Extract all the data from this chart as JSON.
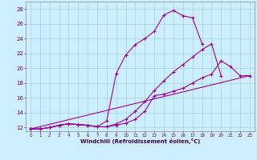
{
  "xlabel": "Windchill (Refroidissement éolien,°C)",
  "background_color": "#cceeff",
  "grid_color": "#99cccc",
  "line_color": "#990099",
  "xlim": [
    -0.5,
    23.5
  ],
  "ylim": [
    11.5,
    29.0
  ],
  "yticks": [
    12,
    14,
    16,
    18,
    20,
    22,
    24,
    26,
    28
  ],
  "xticks": [
    0,
    1,
    2,
    3,
    4,
    5,
    6,
    7,
    8,
    9,
    10,
    11,
    12,
    13,
    14,
    15,
    16,
    17,
    18,
    19,
    20,
    21,
    22,
    23
  ],
  "series": [
    {
      "x": [
        0,
        1,
        2,
        3,
        4,
        5,
        6,
        7,
        8,
        9,
        10,
        11,
        12,
        13,
        14,
        15,
        16,
        17,
        18
      ],
      "y": [
        11.8,
        11.8,
        12.0,
        12.3,
        12.5,
        12.4,
        12.3,
        12.1,
        12.9,
        19.3,
        21.8,
        23.2,
        24.0,
        25.0,
        27.2,
        27.8,
        27.1,
        26.8,
        23.3
      ]
    },
    {
      "x": [
        0,
        1,
        2,
        3,
        4,
        5,
        6,
        7,
        8,
        9,
        10,
        11,
        12,
        13,
        14,
        15,
        16,
        17,
        18,
        19,
        20,
        21,
        22,
        23
      ],
      "y": [
        11.8,
        11.8,
        12.0,
        12.3,
        12.5,
        12.4,
        12.3,
        12.1,
        12.1,
        12.3,
        12.6,
        13.1,
        14.2,
        16.3,
        16.5,
        16.9,
        17.3,
        18.0,
        18.7,
        19.2,
        21.0,
        20.2,
        19.0,
        19.0
      ]
    },
    {
      "x": [
        0,
        1,
        2,
        3,
        4,
        5,
        6,
        7,
        8,
        9,
        10,
        11,
        12,
        13,
        14,
        15,
        16,
        17,
        18,
        19,
        20
      ],
      "y": [
        11.8,
        11.8,
        12.0,
        12.3,
        12.5,
        12.4,
        12.3,
        12.1,
        12.1,
        12.5,
        13.1,
        14.2,
        15.5,
        17.0,
        18.3,
        19.5,
        20.5,
        21.5,
        22.5,
        23.3,
        19.0
      ]
    },
    {
      "x": [
        0,
        23
      ],
      "y": [
        11.8,
        19.0
      ]
    }
  ]
}
